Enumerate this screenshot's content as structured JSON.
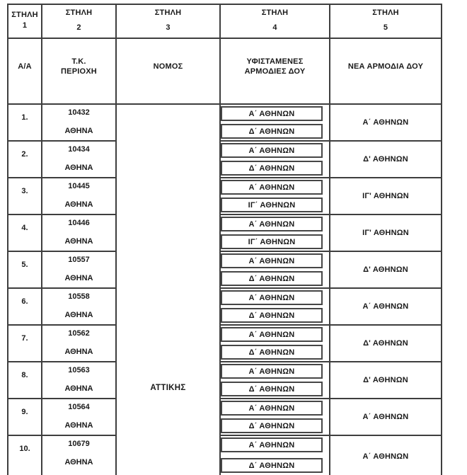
{
  "colors": {
    "background": "#ffffff",
    "border": "#3e3e3e",
    "text": "#1a1a1a"
  },
  "table": {
    "columns": [
      {
        "header": "ΣΤΗΛΗ",
        "number": "1",
        "title_lines": [
          "Α/Α"
        ]
      },
      {
        "header": "ΣΤΗΛΗ",
        "number": "2",
        "title_lines": [
          "Τ.Κ.",
          "ΠΕΡΙΟΧΗ"
        ]
      },
      {
        "header": "ΣΤΗΛΗ",
        "number": "3",
        "title_lines": [
          "ΝΟΜΟΣ"
        ]
      },
      {
        "header": "ΣΤΗΛΗ",
        "number": "4",
        "title_lines": [
          "ΥΦΙΣΤΑΜΕΝΕΣ",
          "ΑΡΜΟΔΙΕΣ ΔΟΥ"
        ]
      },
      {
        "header": "ΣΤΗΛΗ",
        "number": "5",
        "title_lines": [
          "ΝΕΑ ΑΡΜΟΔΙΑ ΔΟΥ"
        ]
      }
    ],
    "nomos": "ΑΤΤΙΚΗΣ",
    "rows": [
      {
        "aa": "1.",
        "postal_code": "10432",
        "area": "ΑΘΗΝΑ",
        "existing_doy": [
          "Α΄ ΑΘΗΝΩΝ",
          "Δ΄ ΑΘΗΝΩΝ"
        ],
        "new_doy": "Α΄ ΑΘΗΝΩΝ"
      },
      {
        "aa": "2.",
        "postal_code": "10434",
        "area": "ΑΘΗΝΑ",
        "existing_doy": [
          "Α΄ ΑΘΗΝΩΝ",
          "Δ΄ ΑΘΗΝΩΝ"
        ],
        "new_doy": "Δ' ΑΘΗΝΩΝ"
      },
      {
        "aa": "3.",
        "postal_code": "10445",
        "area": "ΑΘΗΝΑ",
        "existing_doy": [
          "Α΄ ΑΘΗΝΩΝ",
          "ΙΓ΄ ΑΘΗΝΩΝ"
        ],
        "new_doy": "ΙΓ' ΑΘΗΝΩΝ"
      },
      {
        "aa": "4.",
        "postal_code": "10446",
        "area": "ΑΘΗΝΑ",
        "existing_doy": [
          "Α΄ ΑΘΗΝΩΝ",
          "ΙΓ΄ ΑΘΗΝΩΝ"
        ],
        "new_doy": "ΙΓ' ΑΘΗΝΩΝ"
      },
      {
        "aa": "5.",
        "postal_code": "10557",
        "area": "ΑΘΗΝΑ",
        "existing_doy": [
          "Α΄ ΑΘΗΝΩΝ",
          "Δ΄ ΑΘΗΝΩΝ"
        ],
        "new_doy": "Δ' ΑΘΗΝΩΝ"
      },
      {
        "aa": "6.",
        "postal_code": "10558",
        "area": "ΑΘΗΝΑ",
        "existing_doy": [
          "Α΄ ΑΘΗΝΩΝ",
          "Δ΄ ΑΘΗΝΩΝ"
        ],
        "new_doy": "Α΄ ΑΘΗΝΩΝ"
      },
      {
        "aa": "7.",
        "postal_code": "10562",
        "area": "ΑΘΗΝΑ",
        "existing_doy": [
          "Α΄ ΑΘΗΝΩΝ",
          "Δ΄ ΑΘΗΝΩΝ"
        ],
        "new_doy": "Δ' ΑΘΗΝΩΝ"
      },
      {
        "aa": "8.",
        "postal_code": "10563",
        "area": "ΑΘΗΝΑ",
        "existing_doy": [
          "Α΄ ΑΘΗΝΩΝ",
          "Δ΄ ΑΘΗΝΩΝ"
        ],
        "new_doy": "Δ' ΑΘΗΝΩΝ"
      },
      {
        "aa": "9.",
        "postal_code": "10564",
        "area": "ΑΘΗΝΑ",
        "existing_doy": [
          "Α΄ ΑΘΗΝΩΝ",
          "Δ΄ ΑΘΗΝΩΝ"
        ],
        "new_doy": "Α΄ ΑΘΗΝΩΝ"
      },
      {
        "aa": "10.",
        "postal_code": "10679",
        "area": "ΑΘΗΝΑ",
        "existing_doy": [
          "Α΄ ΑΘΗΝΩΝ",
          "Δ΄ ΑΘΗΝΩΝ"
        ],
        "new_doy": "Α΄ ΑΘΗΝΩΝ"
      }
    ]
  }
}
